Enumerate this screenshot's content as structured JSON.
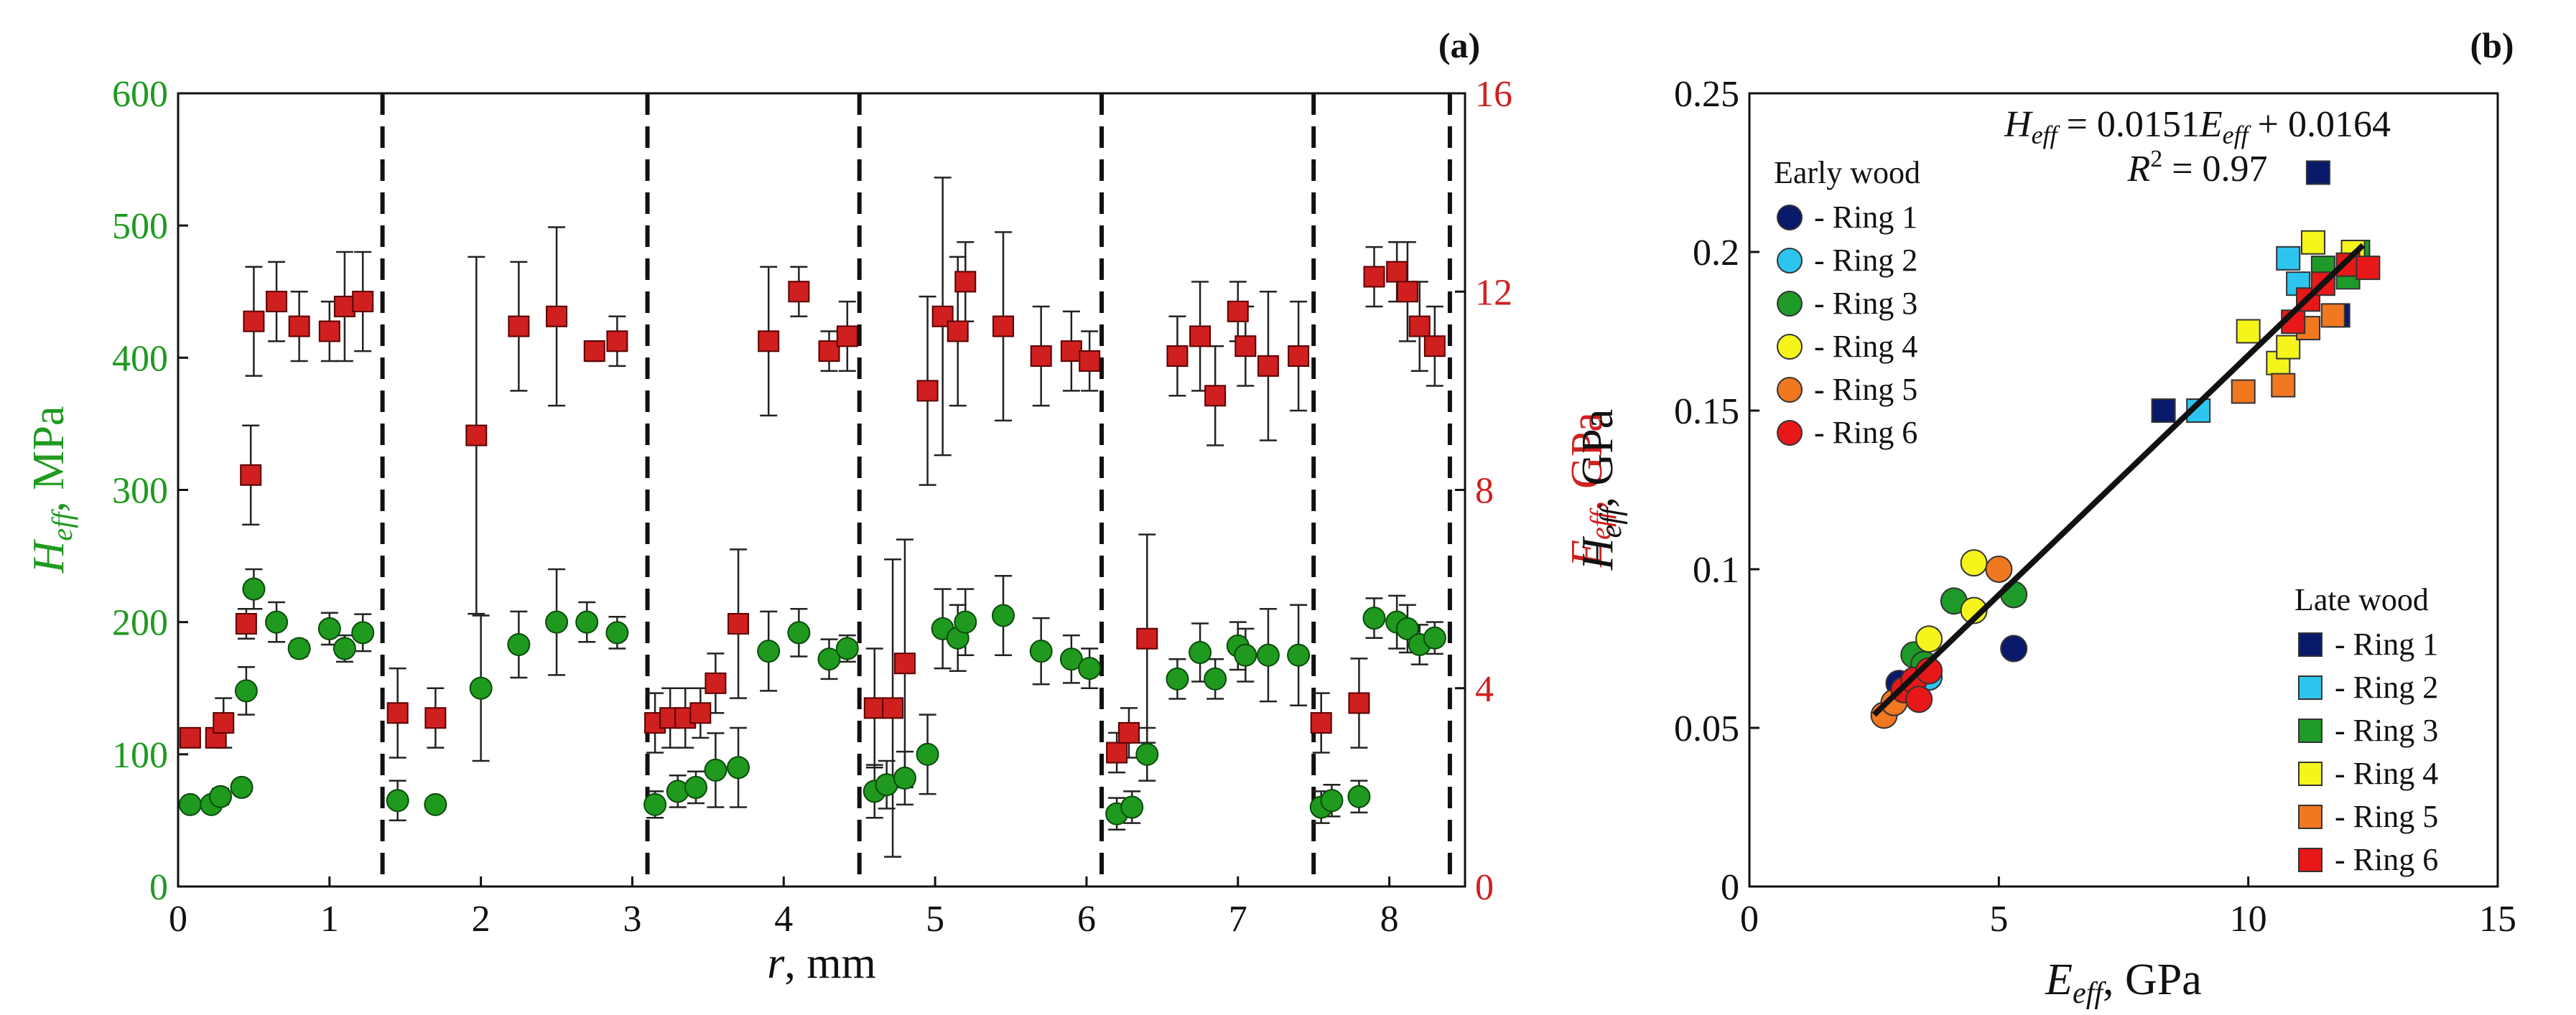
{
  "colors": {
    "green": "#1f9a1f",
    "red": "#d01f1f",
    "black": "#111111",
    "ring1": "#0a1a6b",
    "ring2": "#2ec4f0",
    "ring3": "#1e9a28",
    "ring4": "#f5f51c",
    "ring5": "#f07820",
    "ring6": "#e81818"
  },
  "chart_data": [
    {
      "id": "a",
      "type": "scatter",
      "panel_label": "(a)",
      "xlabel": {
        "main": "r",
        "unit": ", mm"
      },
      "ylabel_left": {
        "main": "H",
        "sub": "eff",
        "unit": ", MPa"
      },
      "ylabel_right": {
        "main": "E",
        "sub": "eff",
        "unit": ", GPa"
      },
      "xlim": [
        0,
        8.5
      ],
      "ylim_left": [
        0,
        600
      ],
      "ylim_right": [
        0,
        16
      ],
      "x_ticks": [
        "0",
        "1",
        "2",
        "3",
        "4",
        "5",
        "6",
        "7",
        "8"
      ],
      "y_ticks_left": [
        "0",
        "100",
        "200",
        "300",
        "400",
        "500",
        "600"
      ],
      "y_ticks_right": [
        "0",
        "4",
        "8",
        "12",
        "16"
      ],
      "ring_boundaries": [
        1.35,
        3.1,
        4.5,
        6.1,
        7.5,
        8.4
      ],
      "series": [
        {
          "name": "H_eff (MPa)",
          "axis": "left",
          "marker": "circle",
          "points": [
            [
              0.08,
              62,
              5
            ],
            [
              0.22,
              62,
              4
            ],
            [
              0.28,
              68,
              6
            ],
            [
              0.42,
              75,
              5
            ],
            [
              0.45,
              148,
              18
            ],
            [
              0.5,
              225,
              15
            ],
            [
              0.65,
              200,
              15
            ],
            [
              0.8,
              180,
              6
            ],
            [
              1.0,
              195,
              12
            ],
            [
              1.1,
              180,
              10
            ],
            [
              1.22,
              192,
              14
            ],
            [
              1.45,
              65,
              15
            ],
            [
              1.7,
              62,
              5
            ],
            [
              2.0,
              150,
              55
            ],
            [
              2.25,
              183,
              25
            ],
            [
              2.5,
              200,
              40
            ],
            [
              2.7,
              200,
              15
            ],
            [
              2.9,
              192,
              12
            ],
            [
              3.15,
              62,
              10
            ],
            [
              3.3,
              72,
              12
            ],
            [
              3.42,
              75,
              12
            ],
            [
              3.55,
              88,
              28
            ],
            [
              3.7,
              90,
              30
            ],
            [
              3.9,
              178,
              30
            ],
            [
              4.1,
              192,
              18
            ],
            [
              4.3,
              172,
              15
            ],
            [
              4.42,
              180,
              10
            ],
            [
              4.6,
              72,
              20
            ],
            [
              4.68,
              77,
              18
            ],
            [
              4.8,
              82,
              20
            ],
            [
              4.95,
              100,
              30
            ],
            [
              5.05,
              195,
              30
            ],
            [
              5.15,
              188,
              25
            ],
            [
              5.2,
              200,
              25
            ],
            [
              5.45,
              205,
              30
            ],
            [
              5.7,
              178,
              25
            ],
            [
              5.9,
              172,
              18
            ],
            [
              6.02,
              165,
              15
            ],
            [
              6.2,
              55,
              12
            ],
            [
              6.3,
              60,
              12
            ],
            [
              6.4,
              100,
              20
            ],
            [
              6.6,
              157,
              15
            ],
            [
              6.75,
              177,
              22
            ],
            [
              6.85,
              157,
              15
            ],
            [
              7.0,
              182,
              18
            ],
            [
              7.05,
              175,
              20
            ],
            [
              7.2,
              175,
              35
            ],
            [
              7.4,
              175,
              38
            ],
            [
              7.55,
              60,
              12
            ],
            [
              7.62,
              65,
              12
            ],
            [
              7.8,
              68,
              12
            ],
            [
              7.9,
              203,
              15
            ],
            [
              8.05,
              200,
              20
            ],
            [
              8.12,
              195,
              18
            ],
            [
              8.2,
              183,
              15
            ],
            [
              8.3,
              188,
              12
            ]
          ]
        },
        {
          "name": "E_eff (GPa)",
          "axis": "right",
          "marker": "square",
          "points": [
            [
              0.08,
              3.0,
              0.15
            ],
            [
              0.25,
              3.0,
              0.15
            ],
            [
              0.3,
              3.3,
              0.5
            ],
            [
              0.45,
              5.3,
              0.3
            ],
            [
              0.48,
              8.3,
              1.0
            ],
            [
              0.5,
              11.4,
              1.1
            ],
            [
              0.65,
              11.8,
              0.8
            ],
            [
              0.8,
              11.3,
              0.7
            ],
            [
              1.0,
              11.2,
              0.6
            ],
            [
              1.1,
              11.7,
              1.1
            ],
            [
              1.22,
              11.8,
              1.0
            ],
            [
              1.45,
              3.5,
              0.9
            ],
            [
              1.7,
              3.4,
              0.6
            ],
            [
              1.97,
              9.1,
              3.6
            ],
            [
              2.25,
              11.3,
              1.3
            ],
            [
              2.5,
              11.5,
              1.8
            ],
            [
              2.75,
              10.8,
              0.2
            ],
            [
              2.9,
              11.0,
              0.5
            ],
            [
              3.15,
              3.3,
              0.6
            ],
            [
              3.25,
              3.4,
              0.6
            ],
            [
              3.35,
              3.4,
              0.6
            ],
            [
              3.45,
              3.5,
              0.5
            ],
            [
              3.55,
              4.1,
              0.6
            ],
            [
              3.7,
              5.3,
              1.5
            ],
            [
              3.9,
              11.0,
              1.5
            ],
            [
              4.1,
              12.0,
              0.5
            ],
            [
              4.3,
              10.8,
              0.4
            ],
            [
              4.42,
              11.1,
              0.7
            ],
            [
              4.6,
              3.6,
              1.2
            ],
            [
              4.72,
              3.6,
              3.0
            ],
            [
              4.8,
              4.5,
              2.5
            ],
            [
              4.95,
              10.0,
              1.9
            ],
            [
              5.05,
              11.5,
              2.8
            ],
            [
              5.15,
              11.2,
              1.5
            ],
            [
              5.2,
              12.2,
              0.8
            ],
            [
              5.45,
              11.3,
              1.9
            ],
            [
              5.7,
              10.7,
              1.0
            ],
            [
              5.9,
              10.8,
              0.8
            ],
            [
              6.02,
              10.6,
              0.6
            ],
            [
              6.2,
              2.7,
              0.4
            ],
            [
              6.28,
              3.1,
              0.5
            ],
            [
              6.4,
              5.0,
              2.1
            ],
            [
              6.6,
              10.7,
              0.8
            ],
            [
              6.75,
              11.1,
              1.1
            ],
            [
              6.85,
              9.9,
              1.0
            ],
            [
              7.0,
              11.6,
              0.6
            ],
            [
              7.05,
              10.9,
              0.8
            ],
            [
              7.2,
              10.5,
              1.5
            ],
            [
              7.4,
              10.7,
              1.1
            ],
            [
              7.55,
              3.3,
              0.6
            ],
            [
              7.8,
              3.7,
              0.9
            ],
            [
              7.9,
              12.3,
              0.6
            ],
            [
              8.05,
              12.4,
              0.6
            ],
            [
              8.12,
              12.0,
              1.0
            ],
            [
              8.2,
              11.3,
              0.9
            ],
            [
              8.3,
              10.9,
              0.8
            ]
          ]
        }
      ]
    },
    {
      "id": "b",
      "type": "scatter",
      "panel_label": "(b)",
      "xlabel": {
        "main": "E",
        "sub": "eff",
        "unit": ", GPa"
      },
      "ylabel": {
        "main": "H",
        "sub": "eff",
        "unit": ", GPa"
      },
      "xlim": [
        0,
        15
      ],
      "ylim": [
        0,
        0.25
      ],
      "x_ticks": [
        "0",
        "5",
        "10",
        "15"
      ],
      "y_ticks": [
        "0",
        "0.05",
        "0.1",
        "0.15",
        "0.2",
        "0.25"
      ],
      "equation": {
        "lhs": "H",
        "lhs_sub": "eff",
        "mid": " = 0.0151",
        "var": "E",
        "var_sub": "eff",
        "rhs": " + 0.0164"
      },
      "r2": {
        "label": "R",
        "exp": "2",
        "value": " = 0.97"
      },
      "fit_line": {
        "slope": 0.0151,
        "intercept": 0.0164,
        "x_range": [
          2.5,
          12.3
        ]
      },
      "legend_early": {
        "title": "Early wood",
        "entries": [
          {
            "label": "- Ring 1",
            "color_key": "ring1"
          },
          {
            "label": "- Ring 2",
            "color_key": "ring2"
          },
          {
            "label": "- Ring 3",
            "color_key": "ring3"
          },
          {
            "label": "- Ring 4",
            "color_key": "ring4"
          },
          {
            "label": "- Ring 5",
            "color_key": "ring5"
          },
          {
            "label": "- Ring 6",
            "color_key": "ring6"
          }
        ]
      },
      "legend_late": {
        "title": "Late wood",
        "entries": [
          {
            "label": "- Ring 1",
            "color_key": "ring1"
          },
          {
            "label": "- Ring 2",
            "color_key": "ring2"
          },
          {
            "label": "- Ring 3",
            "color_key": "ring3"
          },
          {
            "label": "- Ring 4",
            "color_key": "ring4"
          },
          {
            "label": "- Ring 5",
            "color_key": "ring5"
          },
          {
            "label": "- Ring 6",
            "color_key": "ring6"
          }
        ]
      },
      "early_points": [
        {
          "ring": "ring1",
          "x": 5.3,
          "y": 0.075
        },
        {
          "ring": "ring1",
          "x": 3.0,
          "y": 0.064
        },
        {
          "ring": "ring2",
          "x": 3.6,
          "y": 0.066
        },
        {
          "ring": "ring2",
          "x": 3.2,
          "y": 0.062
        },
        {
          "ring": "ring3",
          "x": 4.1,
          "y": 0.09
        },
        {
          "ring": "ring3",
          "x": 5.3,
          "y": 0.092
        },
        {
          "ring": "ring3",
          "x": 3.3,
          "y": 0.073
        },
        {
          "ring": "ring3",
          "x": 3.5,
          "y": 0.07
        },
        {
          "ring": "ring4",
          "x": 4.5,
          "y": 0.102
        },
        {
          "ring": "ring4",
          "x": 4.5,
          "y": 0.087
        },
        {
          "ring": "ring4",
          "x": 3.6,
          "y": 0.078
        },
        {
          "ring": "ring5",
          "x": 5.0,
          "y": 0.1
        },
        {
          "ring": "ring5",
          "x": 2.7,
          "y": 0.054
        },
        {
          "ring": "ring5",
          "x": 2.9,
          "y": 0.058
        },
        {
          "ring": "ring6",
          "x": 3.1,
          "y": 0.062
        },
        {
          "ring": "ring6",
          "x": 3.3,
          "y": 0.065
        },
        {
          "ring": "ring6",
          "x": 3.4,
          "y": 0.059
        },
        {
          "ring": "ring6",
          "x": 3.6,
          "y": 0.068
        }
      ],
      "late_points": [
        {
          "ring": "ring1",
          "x": 11.4,
          "y": 0.225
        },
        {
          "ring": "ring1",
          "x": 11.8,
          "y": 0.18
        },
        {
          "ring": "ring1",
          "x": 8.3,
          "y": 0.15
        },
        {
          "ring": "ring2",
          "x": 9.0,
          "y": 0.15
        },
        {
          "ring": "ring2",
          "x": 10.8,
          "y": 0.198
        },
        {
          "ring": "ring2",
          "x": 11.0,
          "y": 0.19
        },
        {
          "ring": "ring3",
          "x": 11.5,
          "y": 0.195
        },
        {
          "ring": "ring3",
          "x": 12.0,
          "y": 0.192
        },
        {
          "ring": "ring3",
          "x": 12.2,
          "y": 0.2
        },
        {
          "ring": "ring4",
          "x": 10.0,
          "y": 0.175
        },
        {
          "ring": "ring4",
          "x": 10.6,
          "y": 0.165
        },
        {
          "ring": "ring4",
          "x": 10.8,
          "y": 0.17
        },
        {
          "ring": "ring4",
          "x": 11.3,
          "y": 0.203
        },
        {
          "ring": "ring4",
          "x": 12.1,
          "y": 0.2
        },
        {
          "ring": "ring5",
          "x": 9.9,
          "y": 0.156
        },
        {
          "ring": "ring5",
          "x": 10.7,
          "y": 0.158
        },
        {
          "ring": "ring5",
          "x": 11.2,
          "y": 0.176
        },
        {
          "ring": "ring5",
          "x": 11.7,
          "y": 0.18
        },
        {
          "ring": "ring6",
          "x": 10.9,
          "y": 0.178
        },
        {
          "ring": "ring6",
          "x": 11.2,
          "y": 0.185
        },
        {
          "ring": "ring6",
          "x": 11.5,
          "y": 0.19
        },
        {
          "ring": "ring6",
          "x": 12.0,
          "y": 0.196
        },
        {
          "ring": "ring6",
          "x": 12.4,
          "y": 0.195
        }
      ]
    }
  ]
}
